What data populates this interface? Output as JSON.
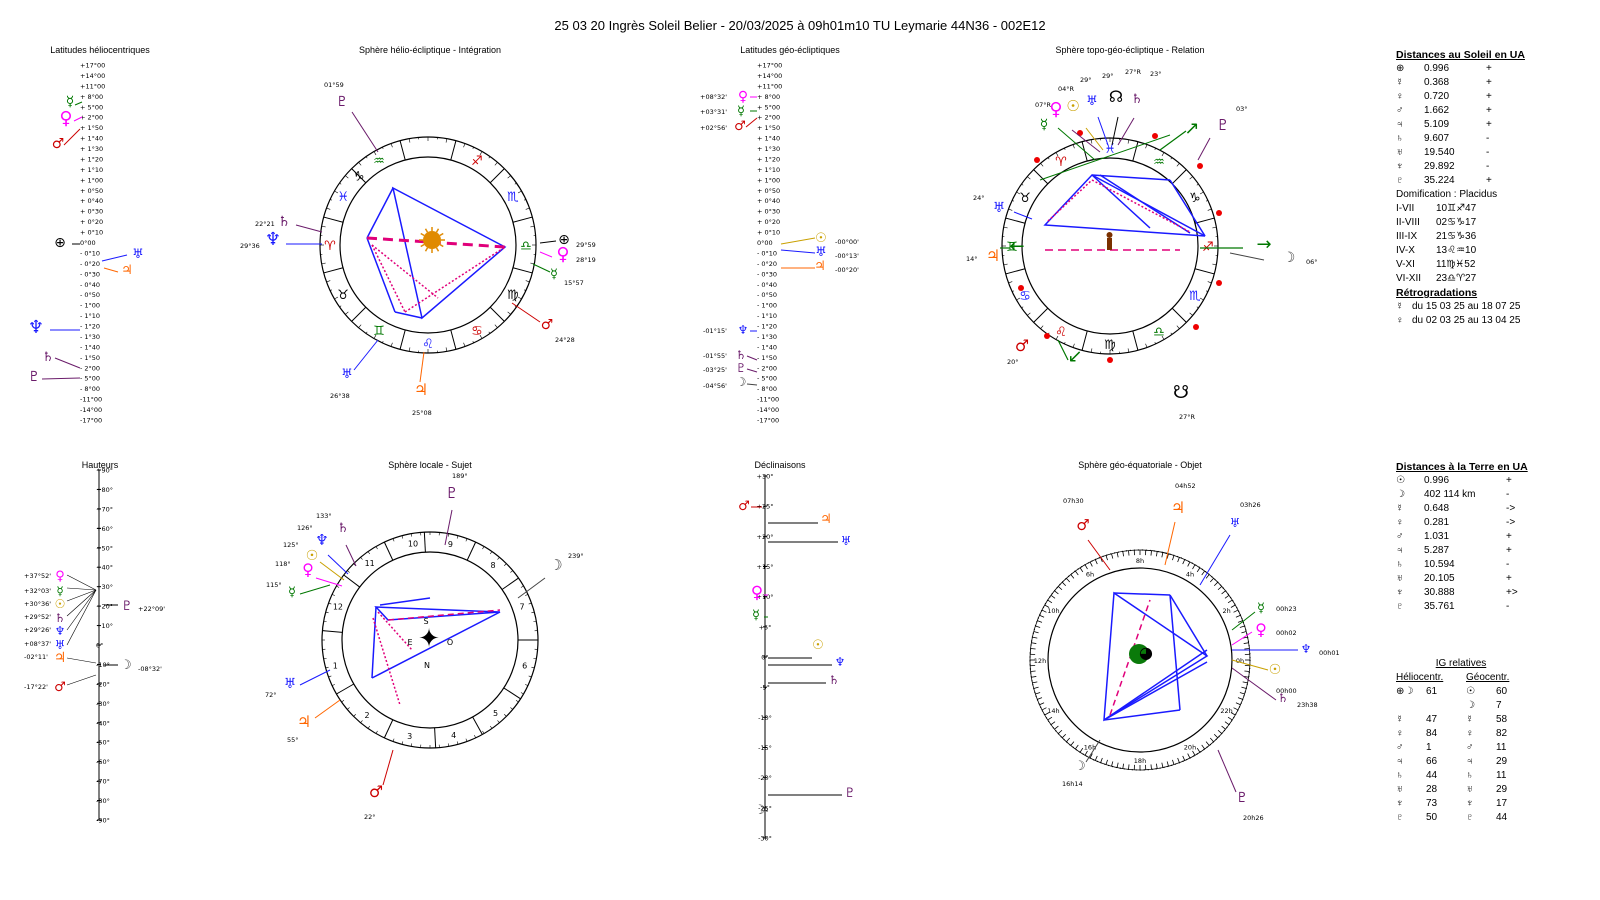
{
  "title": "25 03 20 Ingrès Soleil Belier   -  20/03/2025 à 09h01m10 TU  Leymarie  44N36 - 002E12",
  "sections": {
    "helio_lat": "Latitudes héliocentriques",
    "helio_sphere": "Sphère hélio-écliptique - Intégration",
    "geo_lat": "Latitudes géo-écliptiques",
    "topo_sphere": "Sphère topo-géo-écliptique - Relation",
    "heights": "Hauteurs",
    "local_sphere": "Sphère locale - Sujet",
    "declinations": "Déclinaisons",
    "equat_sphere": "Sphère géo-équatoriale - Objet"
  },
  "helio_lat_ticks": [
    "+17°00",
    "+14°00",
    "+11°00",
    "+ 8°00",
    "+ 5°00",
    "+ 2°00",
    "+ 1°50",
    "+ 1°40",
    "+ 1°30",
    "+ 1°20",
    "+ 1°10",
    "+ 1°00",
    "+ 0°50",
    "+ 0°40",
    "+ 0°30",
    "+ 0°20",
    "+ 0°10",
    "0°00",
    "- 0°10",
    "- 0°20",
    "- 0°30",
    "- 0°40",
    "- 0°50",
    "- 1°00",
    "- 1°10",
    "- 1°20",
    "- 1°30",
    "- 1°40",
    "- 1°50",
    "- 2°00",
    "- 5°00",
    "- 8°00",
    "-11°00",
    "-14°00",
    "-17°00"
  ],
  "height_ticks": [
    "+90°",
    "+80°",
    "+70°",
    "+60°",
    "+50°",
    "+40°",
    "+30°",
    "+20°",
    "+10°",
    "0°",
    "-10°",
    "-20°",
    "-30°",
    "-40°",
    "-50°",
    "-60°",
    "-70°",
    "-80°",
    "-90°"
  ],
  "decl_ticks": [
    "+30°",
    "+25°",
    "+20°",
    "+15°",
    "+10°",
    "+5°",
    "0°",
    "-5°",
    "-10°",
    "-15°",
    "-20°",
    "-25°",
    "-30°"
  ],
  "helio_labels": {
    "t1": "01°59",
    "t2": "22°21",
    "t3": "29°36",
    "t4": "29°59",
    "t5": "28°19",
    "t6": "15°57",
    "t7": "24°28",
    "t8": "26°38",
    "t9": "25°08"
  },
  "geo_lat_labels": {
    "a": "+08°32'",
    "b": "+03°31'",
    "c": "+02°56'",
    "d": "-00°00'",
    "e": "-00°13'",
    "f": "-00°20'",
    "g": "-01°15'",
    "h": "-01°55'",
    "i": "-03°25'",
    "j": "-04°56'"
  },
  "topo_labels": {
    "a": "29°",
    "b": "29°",
    "c": "27°R",
    "d": "23°",
    "e": "04°R",
    "f": "07°R",
    "g": "03°",
    "h": "24°",
    "i": "14°",
    "j": "06°",
    "k": "20°",
    "l": "27°R"
  },
  "height_labels": {
    "a": "+37°52'",
    "b": "+32°03'",
    "c": "+30°36'",
    "d": "+29°52'",
    "e": "+29°26'",
    "f": "+08°37'",
    "g": "-02°11'",
    "h": "-17°22'",
    "i": "+22°09'",
    "j": "-08°32'"
  },
  "local_labels": {
    "a": "189°",
    "b": "133°",
    "c": "126°",
    "d": "125°",
    "e": "118°",
    "f": "115°",
    "g": "239°",
    "h": "72°",
    "i": "55°",
    "j": "22°",
    "houses": [
      "9",
      "8",
      "7",
      "6",
      "5",
      "4",
      "3",
      "2",
      "1",
      "12",
      "11",
      "10"
    ],
    "S": "S",
    "E": "E",
    "O": "O",
    "N": "N"
  },
  "equat_labels": {
    "a": "07h30",
    "b": "04h52",
    "c": "03h26",
    "d": "00h23",
    "e": "00h02",
    "f": "00h01",
    "g": "00h00",
    "h": "23h38",
    "i": "16h14",
    "j": "20h26",
    "hours": [
      "6h",
      "4h",
      "2h",
      "0h",
      "22h",
      "20h",
      "18h",
      "16h",
      "14h",
      "12h",
      "10h",
      "8h"
    ]
  },
  "sun_dist": {
    "header": "Distances au Soleil en UA",
    "rows": [
      {
        "g": "⊕",
        "v": "0.996",
        "s": "+"
      },
      {
        "g": "☿",
        "v": "0.368",
        "s": "+"
      },
      {
        "g": "♀",
        "v": "0.720",
        "s": "+"
      },
      {
        "g": "♂",
        "v": "1.662",
        "s": "+"
      },
      {
        "g": "♃",
        "v": "5.109",
        "s": "+"
      },
      {
        "g": "♄",
        "v": "9.607",
        "s": "-"
      },
      {
        "g": "♅",
        "v": "19.540",
        "s": "-"
      },
      {
        "g": "♆",
        "v": "29.892",
        "s": "-"
      },
      {
        "g": "♇",
        "v": "35.224",
        "s": "+"
      }
    ]
  },
  "houses": {
    "header": "Domification : Placidus",
    "rows": [
      {
        "k": "I-VII",
        "v": "10♊♐47"
      },
      {
        "k": "II-VIII",
        "v": "02♋♑17"
      },
      {
        "k": "III-IX",
        "v": "21♋♑36"
      },
      {
        "k": "IV-X",
        "v": "13♌♒10"
      },
      {
        "k": "V-XI",
        "v": "11♍♓52"
      },
      {
        "k": "VI-XII",
        "v": "23♎♈27"
      }
    ]
  },
  "retro": {
    "header": "Rétrogradations",
    "rows": [
      {
        "g": "☿",
        "v": "du 15 03 25 au 18 07 25"
      },
      {
        "g": "♀",
        "v": "du 02 03 25 au 13 04 25"
      }
    ]
  },
  "earth_dist": {
    "header": "Distances à la Terre en UA",
    "rows": [
      {
        "g": "☉",
        "v": "0.996",
        "s": "+"
      },
      {
        "g": "☽",
        "v": "402 114 km",
        "s": "-"
      },
      {
        "g": "☿",
        "v": "0.648",
        "s": "->"
      },
      {
        "g": "♀",
        "v": "0.281",
        "s": "->"
      },
      {
        "g": "♂",
        "v": "1.031",
        "s": "+"
      },
      {
        "g": "♃",
        "v": "5.287",
        "s": "+"
      },
      {
        "g": "♄",
        "v": "10.594",
        "s": "-"
      },
      {
        "g": "♅",
        "v": "20.105",
        "s": "+"
      },
      {
        "g": "♆",
        "v": "30.888",
        "s": "+>"
      },
      {
        "g": "♇",
        "v": "35.761",
        "s": "-"
      }
    ]
  },
  "ig": {
    "header": "IG relatives",
    "col1": "Héliocentr.",
    "col2": "Géocentr.",
    "rows": [
      {
        "g1": "⊕☽",
        "v1": "61",
        "g2": "☉",
        "v2": "60"
      },
      {
        "g1": "",
        "v1": "",
        "g2": "☽",
        "v2": "7"
      },
      {
        "g1": "☿",
        "v1": "47",
        "g2": "☿",
        "v2": "58"
      },
      {
        "g1": "♀",
        "v1": "84",
        "g2": "♀",
        "v2": "82"
      },
      {
        "g1": "♂",
        "v1": "1",
        "g2": "♂",
        "v2": "11"
      },
      {
        "g1": "♃",
        "v1": "66",
        "g2": "♃",
        "v2": "29"
      },
      {
        "g1": "♄",
        "v1": "44",
        "g2": "♄",
        "v2": "11"
      },
      {
        "g1": "♅",
        "v1": "28",
        "g2": "♅",
        "v2": "29"
      },
      {
        "g1": "♆",
        "v1": "73",
        "g2": "♆",
        "v2": "17"
      },
      {
        "g1": "♇",
        "v1": "50",
        "g2": "♇",
        "v2": "44"
      }
    ]
  },
  "colors": {
    "blue": "#1a1aff",
    "magenta": "#e0007a",
    "green": "#007700",
    "red": "#cc0000",
    "orange": "#ff6600",
    "purple": "#6a1b6a",
    "pink": "#ff00ff"
  }
}
